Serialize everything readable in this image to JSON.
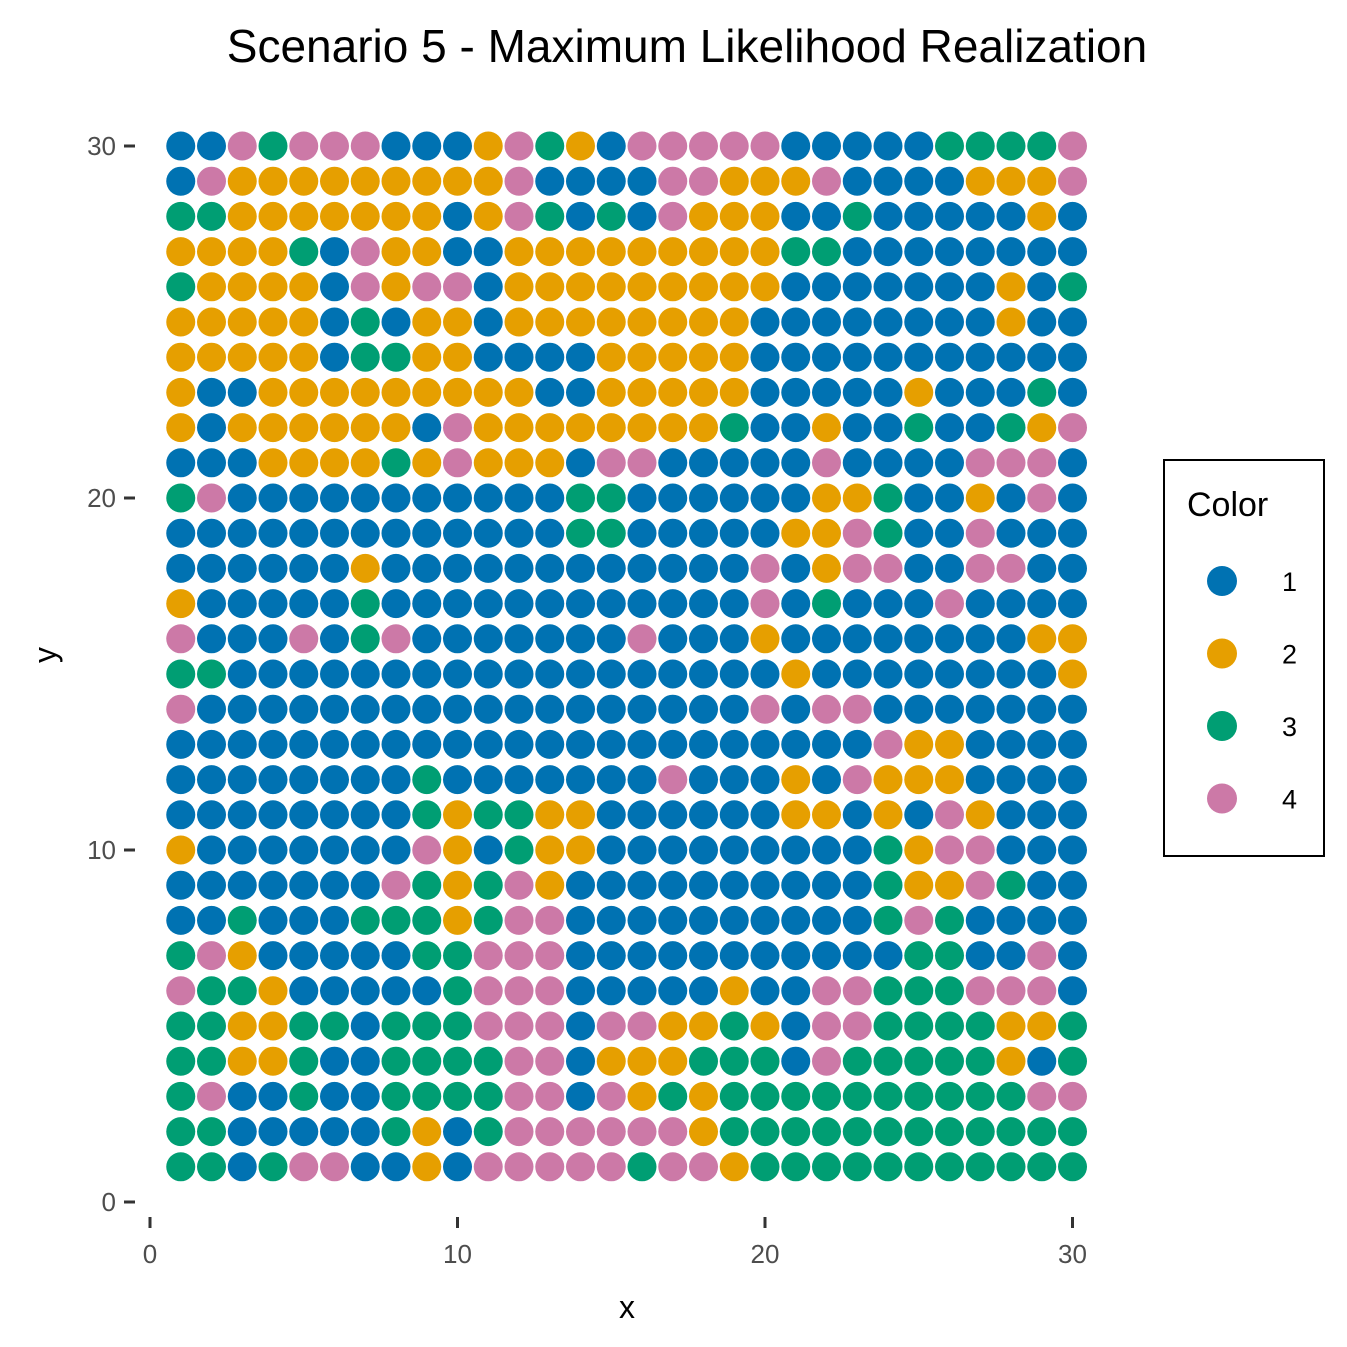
{
  "chart_data": {
    "type": "scatter",
    "title": "Scenario 5 - Maximum Likelihood Realization",
    "xlabel": "x",
    "ylabel": "y",
    "xlim": [
      0,
      30
    ],
    "ylim": [
      0,
      30
    ],
    "x_ticks": [
      0,
      10,
      20,
      30
    ],
    "y_ticks": [
      0,
      10,
      20,
      30
    ],
    "grid": false,
    "legend": {
      "title": "Color",
      "placement": "right",
      "entries": [
        {
          "label": "1",
          "color": "#0072B2"
        },
        {
          "label": "2",
          "color": "#E69F00"
        },
        {
          "label": "3",
          "color": "#009E73"
        },
        {
          "label": "4",
          "color": "#CC79A7"
        }
      ]
    },
    "grid_encoding": "rows listed from y=30 down to y=1; each character is the color category for x=1..30",
    "rows": [
      "114344411124321444441111133334",
      "142222222224111144222411112224",
      "332222222124313142221131111121",
      "222231422112222222223311111111",
      "322221424412222222221111111213",
      "222221312212222222211111111211",
      "222221332211112222211111111111",
      "211222222222112222211111211131",
      "212222221422222222311211311324",
      "111222232422214411111411114441",
      "341111111111133111111223112141",
      "111111111111133111112243114111",
      "111111211111111111141244114411",
      "211111311111111111141311141111",
      "411141341111111411121111111122",
      "331111111111111111112111111112",
      "411111111111111111141441111111",
      "111111111111111111111114221111",
      "111111113111111141112142221111",
      "111111113233221111112212142111",
      "211111114213221111111113244111",
      "111111143234211111111113224311",
      "113111333234411111111113431111",
      "342111113344411111111111331141",
      "433211111344411111211443334441",
      "332233133344414422321443333223",
      "332231133334412223331433333213",
      "341131133334414232333333333344",
      "331111132134444442333333333333",
      "331344112144444344233333333333"
    ]
  }
}
